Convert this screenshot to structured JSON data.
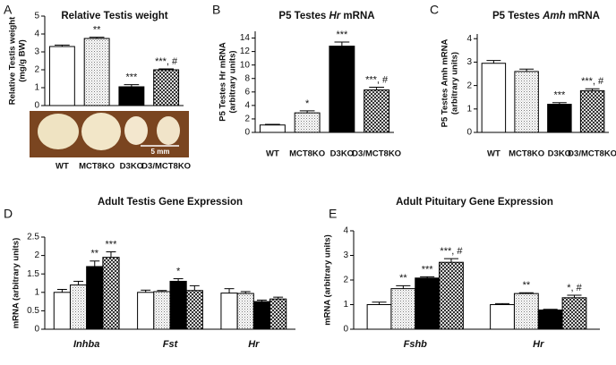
{
  "chart_data": [
    {
      "type": "bar",
      "panel": "A",
      "title": [
        {
          "text": "Relative Testis weight"
        }
      ],
      "ylabel": [
        "Relative Testis weight",
        "(mg/g BW)"
      ],
      "categories": [
        "WT",
        "MCT8KO",
        "D3KO",
        "D3/MCT8KO"
      ],
      "patterns": [
        "white",
        "dots",
        "black",
        "hatch"
      ],
      "values": [
        3.3,
        3.75,
        1.05,
        2.0
      ],
      "errors": [
        0.08,
        0.07,
        0.12,
        0.05
      ],
      "annotations": [
        null,
        "**",
        "***",
        "***, #"
      ],
      "ylim": [
        0,
        5
      ],
      "yticks": [
        0,
        1,
        2,
        3,
        4,
        5
      ],
      "scale_label": "5 mm"
    },
    {
      "type": "bar",
      "panel": "B",
      "title": [
        {
          "text": "P5 Testes "
        },
        {
          "text": "Hr",
          "italic": true
        },
        {
          "text": " mRNA"
        }
      ],
      "ylabel": [
        "P5 Testes Hr mRNA",
        "(arbitrary units)"
      ],
      "categories": [
        "WT",
        "MCT8KO",
        "D3KO",
        "D3/MCT8KO"
      ],
      "patterns": [
        "white",
        "dots",
        "black",
        "hatch"
      ],
      "values": [
        1.1,
        2.9,
        12.8,
        6.3
      ],
      "errors": [
        0.1,
        0.3,
        0.6,
        0.4
      ],
      "annotations": [
        null,
        "*",
        "***",
        "***, #"
      ],
      "ylim": [
        0,
        15
      ],
      "yticks": [
        0,
        2,
        4,
        6,
        8,
        10,
        12,
        14
      ]
    },
    {
      "type": "bar",
      "panel": "C",
      "title": [
        {
          "text": "P5 Testes "
        },
        {
          "text": "Amh",
          "italic": true
        },
        {
          "text": " mRNA"
        }
      ],
      "ylabel": [
        "P5 Testes Amh mRNA",
        "(arbitrary units)"
      ],
      "categories": [
        "WT",
        "MCT8KO",
        "D3KO",
        "D3/MCT8KO"
      ],
      "patterns": [
        "white",
        "dots",
        "black",
        "hatch"
      ],
      "values": [
        2.95,
        2.6,
        1.2,
        1.78
      ],
      "errors": [
        0.12,
        0.1,
        0.07,
        0.08
      ],
      "annotations": [
        null,
        null,
        "***",
        "***, #"
      ],
      "ylim": [
        0,
        4.2
      ],
      "yticks": [
        0,
        1,
        2,
        3,
        4
      ]
    },
    {
      "type": "grouped_bar",
      "panel": "D",
      "title": [
        {
          "text": "Adult Testis Gene Expression"
        }
      ],
      "ylabel": [
        "mRNA (arbitrary units)"
      ],
      "categories": [
        "Inhba",
        "Fst",
        "Hr"
      ],
      "series": [
        {
          "pattern": "white",
          "values": [
            1.0,
            1.0,
            0.98
          ],
          "errors": [
            0.08,
            0.06,
            0.12
          ],
          "annotations": [
            null,
            null,
            null
          ]
        },
        {
          "pattern": "dots",
          "values": [
            1.2,
            1.02,
            0.97
          ],
          "errors": [
            0.1,
            0.03,
            0.05
          ],
          "annotations": [
            null,
            null,
            null
          ]
        },
        {
          "pattern": "black",
          "values": [
            1.7,
            1.3,
            0.75
          ],
          "errors": [
            0.15,
            0.07,
            0.04
          ],
          "annotations": [
            "**",
            "*",
            null
          ]
        },
        {
          "pattern": "hatch",
          "values": [
            1.95,
            1.05,
            0.82
          ],
          "errors": [
            0.15,
            0.13,
            0.05
          ],
          "annotations": [
            "***",
            null,
            null
          ]
        }
      ],
      "ylim": [
        0,
        2.5
      ],
      "yticks": [
        0,
        0.5,
        1,
        1.5,
        2,
        2.5
      ]
    },
    {
      "type": "grouped_bar",
      "panel": "E",
      "title": [
        {
          "text": "Adult Pituitary Gene Expression"
        }
      ],
      "ylabel": [
        "mRNA (arbitrary units)"
      ],
      "categories": [
        "Fshb",
        "Hr"
      ],
      "series": [
        {
          "pattern": "white",
          "values": [
            1.0,
            1.0
          ],
          "errors": [
            0.1,
            0.04
          ],
          "annotations": [
            null,
            null
          ]
        },
        {
          "pattern": "dots",
          "values": [
            1.65,
            1.45
          ],
          "errors": [
            0.12,
            0.03
          ],
          "annotations": [
            "**",
            "**"
          ]
        },
        {
          "pattern": "black",
          "values": [
            2.08,
            0.78
          ],
          "errors": [
            0.05,
            0.03
          ],
          "annotations": [
            "***",
            null
          ]
        },
        {
          "pattern": "hatch",
          "values": [
            2.72,
            1.28
          ],
          "errors": [
            0.15,
            0.1
          ],
          "annotations": [
            "***, #",
            "*, #"
          ]
        }
      ],
      "ylim": [
        0,
        4
      ],
      "yticks": [
        0,
        1,
        2,
        3,
        4
      ]
    }
  ]
}
